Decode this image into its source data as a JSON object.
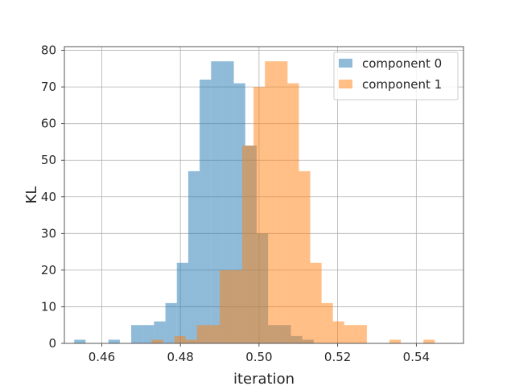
{
  "chart_data": {
    "type": "histogram",
    "xlabel": "iteration",
    "ylabel": "KL",
    "xlim": [
      0.4505,
      0.552
    ],
    "ylim": [
      0,
      81
    ],
    "xticks": [
      0.46,
      0.48,
      0.5,
      0.52,
      0.54
    ],
    "xtick_labels": [
      "0.46",
      "0.48",
      "0.50",
      "0.52",
      "0.54"
    ],
    "yticks": [
      0,
      10,
      20,
      30,
      40,
      50,
      60,
      70,
      80
    ],
    "ytick_labels": [
      "0",
      "10",
      "20",
      "30",
      "40",
      "50",
      "60",
      "70",
      "80"
    ],
    "grid": true,
    "legend_position": "top-right",
    "series": [
      {
        "name": "component 0",
        "color": "#1f77b4",
        "alpha": 0.5,
        "bin_start": 0.453,
        "bin_width": 0.0029,
        "counts": [
          1,
          0,
          0,
          1,
          0,
          5,
          5,
          6,
          11,
          22,
          47,
          72,
          77,
          77,
          71,
          54,
          30,
          5,
          5,
          2,
          1
        ]
      },
      {
        "name": "component 1",
        "color": "#ff7f0e",
        "alpha": 0.5,
        "bin_start": 0.4727,
        "bin_width": 0.00288,
        "counts": [
          1,
          0,
          2,
          1,
          5,
          5,
          20,
          20,
          54,
          70,
          77,
          77,
          71,
          47,
          22,
          11,
          6,
          5,
          5,
          0,
          0,
          1,
          0,
          0,
          1
        ]
      }
    ]
  }
}
